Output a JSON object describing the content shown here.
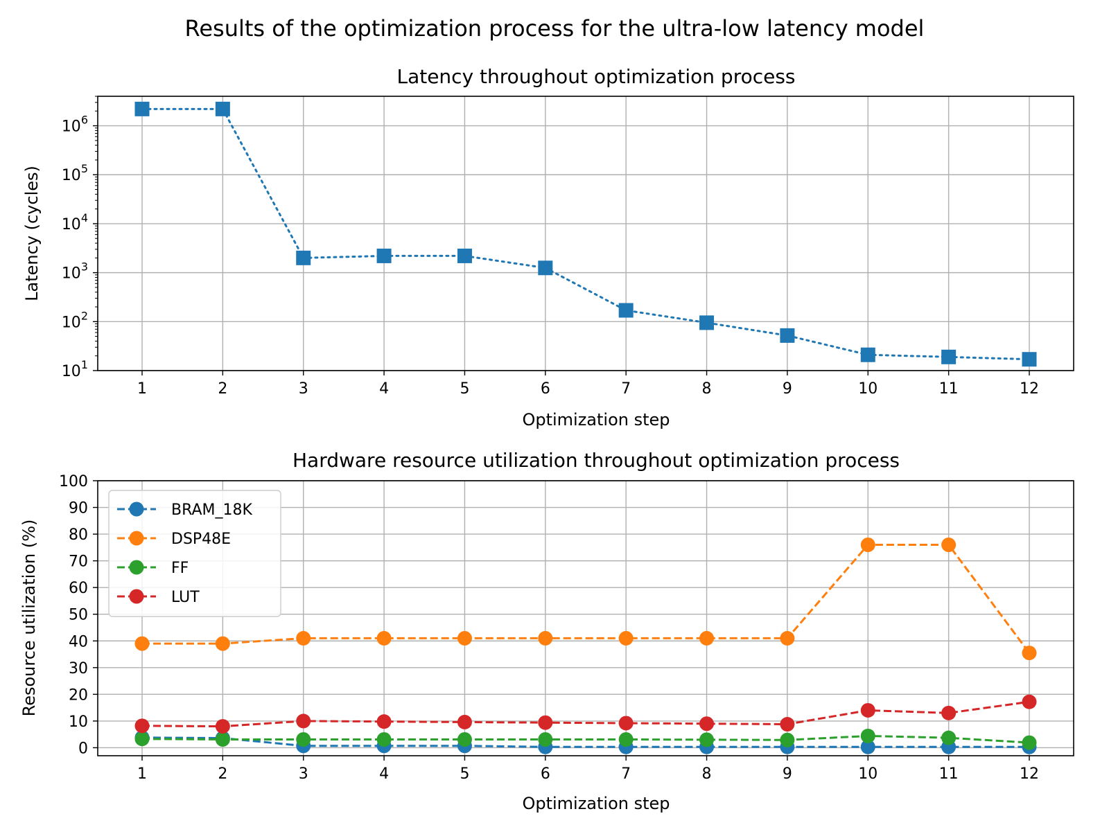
{
  "figure": {
    "suptitle": "Results of the optimization process for the ultra-low latency model"
  },
  "chart_data": [
    {
      "type": "line",
      "title": "Latency throughout optimization process",
      "xlabel": "Optimization step",
      "ylabel": "Latency (cycles)",
      "yscale": "log",
      "ylim": [
        10,
        4000000
      ],
      "xlim": [
        0.45,
        12.55
      ],
      "x": [
        1,
        2,
        3,
        4,
        5,
        6,
        7,
        8,
        9,
        10,
        11,
        12
      ],
      "xticks": [
        "1",
        "2",
        "3",
        "4",
        "5",
        "6",
        "7",
        "8",
        "9",
        "10",
        "11",
        "12"
      ],
      "yticks": [
        {
          "value": 10,
          "base": "10",
          "exp": "1"
        },
        {
          "value": 100,
          "base": "10",
          "exp": "2"
        },
        {
          "value": 1000,
          "base": "10",
          "exp": "3"
        },
        {
          "value": 10000,
          "base": "10",
          "exp": "4"
        },
        {
          "value": 100000,
          "base": "10",
          "exp": "5"
        },
        {
          "value": 1000000,
          "base": "10",
          "exp": "6"
        }
      ],
      "grid": true,
      "series": [
        {
          "values": [
            2200000,
            2200000,
            2000,
            2200,
            2200,
            1250,
            170,
            95,
            52,
            21,
            19,
            17
          ],
          "color": "#1f77b4",
          "marker": "square",
          "linestyle": "dotted"
        }
      ]
    },
    {
      "type": "line",
      "title": "Hardware resource utilization throughout optimization process",
      "xlabel": "Optimization step",
      "ylabel": "Resource utilization (%)",
      "ylim": [
        -3,
        100
      ],
      "xlim": [
        0.45,
        12.55
      ],
      "x": [
        1,
        2,
        3,
        4,
        5,
        6,
        7,
        8,
        9,
        10,
        11,
        12
      ],
      "xticks": [
        "1",
        "2",
        "3",
        "4",
        "5",
        "6",
        "7",
        "8",
        "9",
        "10",
        "11",
        "12"
      ],
      "yticks": [
        0,
        10,
        20,
        30,
        40,
        50,
        60,
        70,
        80,
        90,
        100
      ],
      "grid": true,
      "legend": "upper-left",
      "series": [
        {
          "name": "BRAM_18K",
          "color": "#1f77b4",
          "marker": "circle",
          "linestyle": "dashed",
          "values": [
            3.8,
            3.6,
            0.7,
            0.7,
            0.7,
            0.3,
            0.3,
            0.3,
            0.3,
            0.3,
            0.3,
            0.3
          ]
        },
        {
          "name": "DSP48E",
          "color": "#ff7f0e",
          "marker": "circle",
          "linestyle": "dashed",
          "values": [
            39,
            39,
            41,
            41,
            41,
            41,
            41,
            41,
            41,
            76,
            76,
            35.5
          ]
        },
        {
          "name": "FF",
          "color": "#2ca02c",
          "marker": "circle",
          "linestyle": "dashed",
          "values": [
            3.3,
            3.1,
            3.1,
            3.1,
            3.1,
            3.1,
            3.1,
            3.0,
            2.9,
            4.4,
            3.7,
            1.9
          ]
        },
        {
          "name": "LUT",
          "color": "#d62728",
          "marker": "circle",
          "linestyle": "dashed",
          "values": [
            8.2,
            8.0,
            10.0,
            9.8,
            9.6,
            9.4,
            9.2,
            9.0,
            8.8,
            14.0,
            13.0,
            17.2
          ]
        }
      ]
    }
  ]
}
